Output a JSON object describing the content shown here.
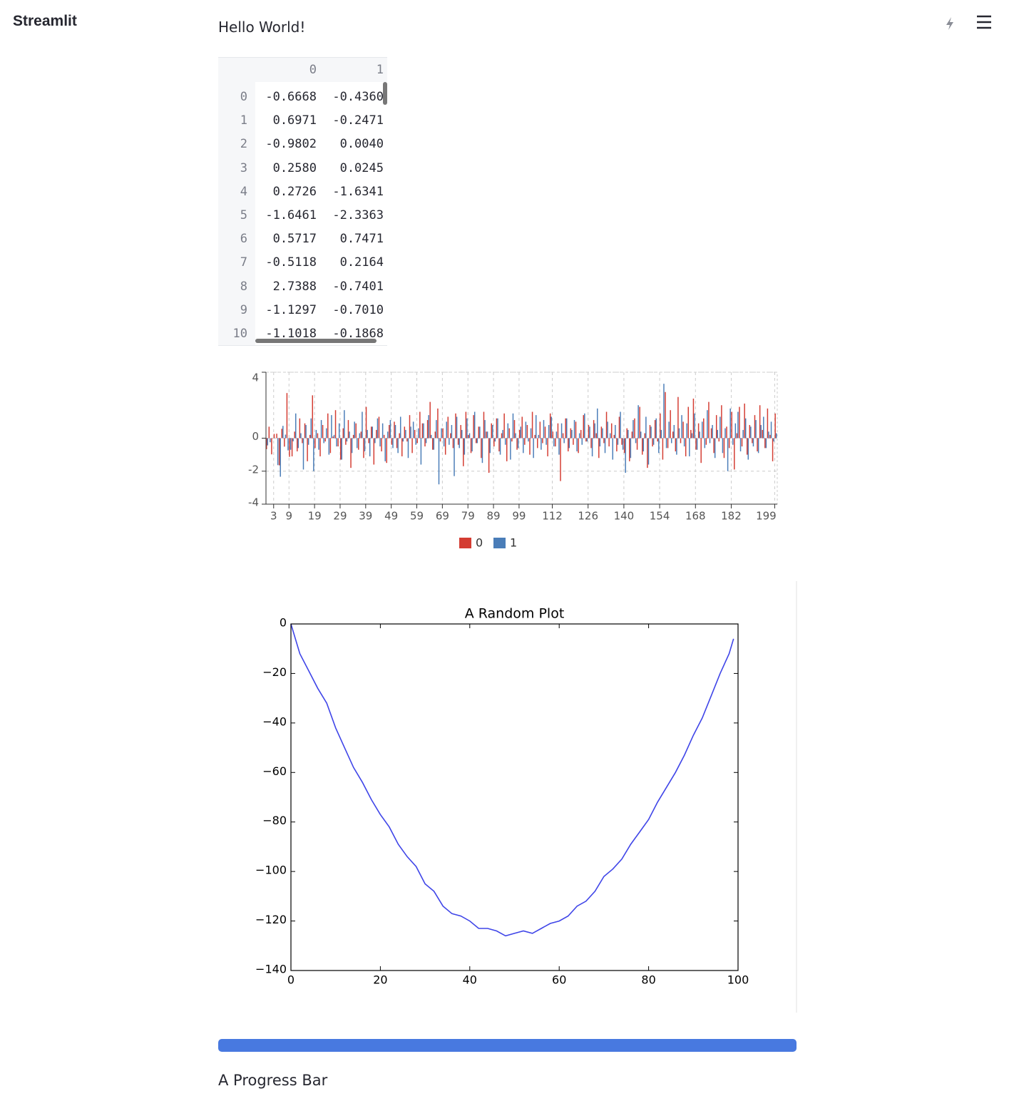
{
  "header": {
    "app_name": "Streamlit"
  },
  "text": "Hello World!",
  "table": {
    "columns": [
      "0",
      "1"
    ],
    "rows": [
      [
        "0",
        "-0.6668",
        "-0.4360"
      ],
      [
        "1",
        "0.6971",
        "-0.2471"
      ],
      [
        "2",
        "-0.9802",
        "0.0040"
      ],
      [
        "3",
        "0.2580",
        "0.0245"
      ],
      [
        "4",
        "0.2726",
        "-1.6341"
      ],
      [
        "5",
        "-1.6461",
        "-2.3363"
      ],
      [
        "6",
        "0.5717",
        "0.7471"
      ],
      [
        "7",
        "-0.5118",
        "0.2164"
      ],
      [
        "8",
        "2.7388",
        "-0.7401"
      ],
      [
        "9",
        "-1.1297",
        "-0.7010"
      ],
      [
        "10",
        "-1.1018",
        "-0.1868"
      ]
    ]
  },
  "chart_data": [
    {
      "type": "bar",
      "x": [
        0,
        1,
        2,
        3,
        4,
        5,
        6,
        7,
        8,
        9,
        10,
        11,
        12,
        13,
        14,
        15,
        16,
        17,
        18,
        19,
        20,
        21,
        22,
        23,
        24,
        25,
        26,
        27,
        28,
        29,
        30,
        31,
        32,
        33,
        34,
        35,
        36,
        37,
        38,
        39,
        40,
        41,
        42,
        43,
        44,
        45,
        46,
        47,
        48,
        49,
        50,
        51,
        52,
        53,
        54,
        55,
        56,
        57,
        58,
        59,
        60,
        61,
        62,
        63,
        64,
        65,
        66,
        67,
        68,
        69,
        70,
        71,
        72,
        73,
        74,
        75,
        76,
        77,
        78,
        79,
        80,
        81,
        82,
        83,
        84,
        85,
        86,
        87,
        88,
        89,
        90,
        91,
        92,
        93,
        94,
        95,
        96,
        97,
        98,
        99,
        100,
        101,
        102,
        103,
        104,
        105,
        106,
        107,
        108,
        109,
        110,
        111,
        112,
        113,
        114,
        115,
        116,
        117,
        118,
        119,
        120,
        121,
        122,
        123,
        124,
        125,
        126,
        127,
        128,
        129,
        130,
        131,
        132,
        133,
        134,
        135,
        136,
        137,
        138,
        139,
        140,
        141,
        142,
        143,
        144,
        145,
        146,
        147,
        148,
        149,
        150,
        151,
        152,
        153,
        154,
        155,
        156,
        157,
        158,
        159,
        160,
        161,
        162,
        163,
        164,
        165,
        166,
        167,
        168,
        169,
        170,
        171,
        172,
        173,
        174,
        175,
        176,
        177,
        178,
        179,
        180,
        181,
        182,
        183,
        184,
        185,
        186,
        187,
        188,
        189,
        190,
        191,
        192,
        193,
        194,
        195,
        196,
        197,
        198,
        199
      ],
      "series": [
        {
          "name": "0",
          "color": "#d43c32",
          "values": [
            -0.6668,
            0.6971,
            -0.9802,
            0.258,
            0.2726,
            -1.6461,
            0.5717,
            -0.5118,
            2.7388,
            -1.1297,
            -1.1018,
            0.4,
            -0.8,
            1.2,
            -0.3,
            0.9,
            -1.4,
            0.2,
            2.6,
            -0.6,
            0.3,
            -1.1,
            0.8,
            -0.2,
            1.5,
            -0.9,
            0.1,
            1.7,
            -0.5,
            -1.3,
            0.6,
            -0.4,
            1.1,
            -1.8,
            0.2,
            0.9,
            -0.7,
            0.4,
            -1.2,
            1.9,
            -0.3,
            0.7,
            -1.6,
            0.5,
            1.3,
            -0.8,
            0.2,
            -1.5,
            0.8,
            -0.4,
            1.0,
            -0.6,
            0.3,
            -1.1,
            0.7,
            -0.2,
            1.4,
            -0.9,
            0.5,
            -0.3,
            1.6,
            0.9,
            -0.5,
            1.1,
            2.2,
            -0.7,
            0.4,
            1.8,
            -0.2,
            0.6,
            -1.0,
            1.3,
            0.3,
            -0.6,
            1.5,
            -0.4,
            0.8,
            -1.7,
            1.6,
            0.2,
            -0.9,
            1.4,
            -0.3,
            0.7,
            -1.2,
            1.6,
            0.4,
            -2.1,
            0.9,
            -0.5,
            1.2,
            -0.8,
            0.3,
            1.5,
            -1.4,
            0.6,
            -0.2,
            1.1,
            -0.7,
            0.5,
            1.3,
            -0.4,
            0.8,
            -1.0,
            1.6,
            0.2,
            -0.6,
            1.0,
            -0.3,
            0.7,
            -1.1,
            1.5,
            0.4,
            -0.5,
            0.9,
            -2.6,
            0.3,
            1.2,
            -0.8,
            0.6,
            -0.4,
            1.0,
            -0.9,
            0.5,
            1.4,
            -0.2,
            0.8,
            -0.6,
            1.1,
            0.3,
            -1.2,
            0.7,
            -0.3,
            1.6,
            -0.5,
            0.9,
            0.2,
            -0.8,
            1.3,
            -0.4,
            -0.9,
            0.6,
            -1.4,
            0.4,
            1.2,
            -0.7,
            1.9,
            -1.0,
            0.3,
            -1.8,
            0.8,
            -0.5,
            1.1,
            -0.2,
            1.5,
            -1.3,
            2.8,
            -0.6,
            1.7,
            0.4,
            -0.8,
            2.5,
            -0.3,
            1.0,
            -1.1,
            1.9,
            0.5,
            2.4,
            -0.7,
            0.9,
            -1.5,
            1.2,
            -0.4,
            2.2,
            0.6,
            -0.9,
            1.4,
            -0.2,
            2.0,
            -1.2,
            0.7,
            -0.6,
            1.6,
            -1.9,
            0.3,
            1.9,
            -0.5,
            2.1,
            -1.0,
            0.8,
            -0.3,
            1.4,
            -0.8,
            2.0,
            0.5,
            -0.6,
            1.8,
            0.2,
            -1.4,
            1.5
          ]
        },
        {
          "name": "1",
          "color": "#4a7db8",
          "values": [
            -0.436,
            -0.2471,
            0.004,
            0.0245,
            -1.6341,
            -2.3363,
            0.7471,
            0.2164,
            -0.7401,
            -0.701,
            -0.1868,
            1.5,
            -0.6,
            0.3,
            -1.9,
            0.8,
            -0.4,
            1.2,
            -2.0,
            0.5,
            -0.7,
            1.1,
            -0.3,
            0.6,
            -1.0,
            1.4,
            0.2,
            -0.5,
            0.9,
            -1.3,
            1.7,
            -0.2,
            0.4,
            -0.9,
            1.0,
            -0.6,
            0.3,
            1.6,
            -0.8,
            0.5,
            -1.1,
            0.7,
            -0.3,
            1.2,
            -0.5,
            0.9,
            -1.4,
            0.4,
            1.1,
            -0.6,
            0.8,
            -0.9,
            1.3,
            -0.2,
            0.5,
            -1.2,
            0.7,
            1.0,
            -0.4,
            0.6,
            -1.6,
            0.9,
            -0.3,
            1.4,
            0.2,
            -0.7,
            1.1,
            -2.8,
            0.6,
            -0.5,
            1.0,
            -0.4,
            0.8,
            -2.3,
            1.3,
            -0.6,
            0.5,
            -1.0,
            1.2,
            0.3,
            -0.8,
            1.6,
            -0.3,
            0.7,
            -1.5,
            1.1,
            0.4,
            -0.9,
            0.8,
            -0.2,
            1.2,
            -1.0,
            0.5,
            -0.4,
            0.9,
            -1.3,
            1.5,
            0.3,
            -0.6,
            0.7,
            -0.9,
            1.0,
            -0.2,
            0.6,
            -1.2,
            1.4,
            0.2,
            -0.7,
            1.1,
            -0.4,
            0.8,
            1.3,
            -0.5,
            0.4,
            -1.0,
            0.9,
            -0.3,
            1.2,
            -0.6,
            0.5,
            1.1,
            -0.8,
            0.3,
            -0.4,
            1.5,
            -0.2,
            0.7,
            -1.1,
            0.9,
            1.8,
            -0.5,
            0.6,
            -0.9,
            1.0,
            0.3,
            -1.3,
            0.8,
            -0.4,
            1.6,
            -0.7,
            -2.1,
            0.5,
            -1.2,
            1.1,
            -0.3,
            2.0,
            0.4,
            -0.8,
            1.3,
            -1.6,
            0.7,
            -0.4,
            1.2,
            -0.9,
            0.5,
            3.3,
            -0.6,
            1.0,
            -0.3,
            0.8,
            -1.0,
            0.6,
            1.4,
            -0.5,
            0.9,
            -1.1,
            0.3,
            1.5,
            -0.7,
            0.4,
            1.0,
            -0.6,
            1.7,
            -0.3,
            0.8,
            -1.2,
            0.5,
            1.3,
            -0.9,
            0.6,
            -2.0,
            1.8,
            -0.4,
            0.9,
            1.6,
            -0.8,
            0.5,
            1.2,
            -1.3,
            0.7,
            -0.5,
            1.1,
            -0.9,
            0.8,
            1.3,
            -0.6,
            0.4,
            1.0,
            -0.2,
            0.3
          ]
        }
      ],
      "xlim": [
        0,
        200
      ],
      "xticks": [
        3,
        9,
        19,
        29,
        39,
        49,
        59,
        69,
        79,
        89,
        99,
        112,
        126,
        140,
        154,
        168,
        182,
        199
      ],
      "ylim": [
        -4,
        4
      ],
      "yticks": [
        -4,
        -2,
        0,
        4
      ],
      "grid": true
    },
    {
      "type": "line",
      "title": "A Random Plot",
      "color": "#3f45e8",
      "x": [
        0,
        2,
        4,
        6,
        8,
        10,
        12,
        14,
        16,
        18,
        20,
        22,
        24,
        26,
        28,
        30,
        32,
        34,
        36,
        38,
        40,
        42,
        44,
        46,
        48,
        50,
        52,
        54,
        56,
        58,
        60,
        62,
        64,
        66,
        68,
        70,
        72,
        74,
        76,
        78,
        80,
        82,
        84,
        86,
        88,
        90,
        92,
        94,
        96,
        98,
        99
      ],
      "values": [
        0,
        -12,
        -19,
        -26,
        -32,
        -42,
        -50,
        -58,
        -64,
        -71,
        -77,
        -82,
        -89,
        -94,
        -98,
        -105,
        -108,
        -114,
        -117,
        -118,
        -120,
        -123,
        -123,
        -124,
        -126,
        -125,
        -124,
        -125,
        -123,
        -121,
        -120,
        -118,
        -114,
        -112,
        -108,
        -102,
        -99,
        -95,
        -89,
        -84,
        -79,
        -72,
        -66,
        -60,
        -53,
        -45,
        -38,
        -29,
        -20,
        -12,
        -6
      ],
      "xlim": [
        0,
        100
      ],
      "xticks": [
        0,
        20,
        40,
        60,
        80,
        100
      ],
      "ylim": [
        -140,
        0
      ],
      "yticks": [
        {
          "value": -140,
          "label": "−140"
        },
        {
          "value": -120,
          "label": "−120"
        },
        {
          "value": -100,
          "label": "−100"
        },
        {
          "value": -80,
          "label": "−80"
        },
        {
          "value": -60,
          "label": "−60"
        },
        {
          "value": -40,
          "label": "−40"
        },
        {
          "value": -20,
          "label": "−20"
        },
        0
      ]
    }
  ],
  "progress": {
    "value": 100,
    "label": "A Progress Bar"
  }
}
